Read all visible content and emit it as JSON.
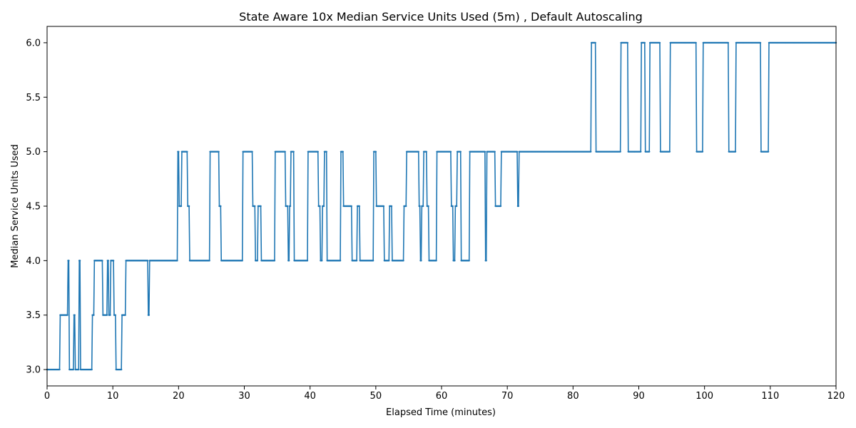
{
  "chart_data": {
    "type": "line",
    "title": "State Aware 10x Median Service Units Used (5m) , Default Autoscaling",
    "xlabel": "Elapsed Time (minutes)",
    "ylabel": "Median Service Units Used",
    "xlim": [
      0,
      120
    ],
    "ylim": [
      2.85,
      6.15
    ],
    "xticks": [
      0,
      10,
      20,
      30,
      40,
      50,
      60,
      70,
      80,
      90,
      100,
      110,
      120
    ],
    "yticks": [
      "3.0",
      "3.5",
      "4.0",
      "4.5",
      "5.0",
      "5.5",
      "6.0"
    ],
    "grid": false,
    "legend": "none",
    "line_color": "#1f77b4",
    "marker": "small dot",
    "series": [
      {
        "step_start": 0,
        "step_minutes": 0.1,
        "levels": [
          [
            0,
            3.0
          ],
          [
            2.0,
            3.5
          ],
          [
            3.2,
            4.0
          ],
          [
            3.4,
            3.0
          ],
          [
            4.1,
            3.5
          ],
          [
            4.3,
            3.0
          ],
          [
            4.9,
            4.0
          ],
          [
            5.1,
            3.0
          ],
          [
            6.9,
            3.5
          ],
          [
            7.2,
            4.0
          ],
          [
            8.5,
            3.5
          ],
          [
            9.2,
            4.0
          ],
          [
            9.4,
            3.5
          ],
          [
            9.7,
            4.0
          ],
          [
            10.2,
            3.5
          ],
          [
            10.5,
            3.0
          ],
          [
            11.4,
            3.5
          ],
          [
            12.0,
            4.0
          ],
          [
            15.4,
            3.5
          ],
          [
            15.6,
            4.0
          ],
          [
            19.9,
            5.0
          ],
          [
            20.1,
            4.5
          ],
          [
            20.5,
            5.0
          ],
          [
            21.4,
            4.5
          ],
          [
            21.7,
            4.0
          ],
          [
            24.8,
            5.0
          ],
          [
            26.2,
            4.5
          ],
          [
            26.5,
            4.0
          ],
          [
            29.8,
            5.0
          ],
          [
            31.3,
            4.5
          ],
          [
            31.7,
            4.0
          ],
          [
            32.1,
            4.5
          ],
          [
            32.6,
            4.0
          ],
          [
            34.7,
            5.0
          ],
          [
            36.3,
            4.5
          ],
          [
            36.7,
            4.0
          ],
          [
            36.9,
            4.5
          ],
          [
            37.1,
            5.0
          ],
          [
            37.6,
            4.0
          ],
          [
            39.7,
            5.0
          ],
          [
            41.3,
            4.5
          ],
          [
            41.6,
            4.0
          ],
          [
            41.9,
            4.5
          ],
          [
            42.2,
            5.0
          ],
          [
            42.6,
            4.0
          ],
          [
            44.7,
            5.0
          ],
          [
            45.1,
            4.5
          ],
          [
            46.4,
            4.0
          ],
          [
            47.2,
            4.5
          ],
          [
            47.6,
            4.0
          ],
          [
            49.7,
            5.0
          ],
          [
            50.1,
            4.5
          ],
          [
            51.3,
            4.0
          ],
          [
            52.1,
            4.5
          ],
          [
            52.5,
            4.0
          ],
          [
            54.3,
            4.5
          ],
          [
            54.7,
            5.0
          ],
          [
            56.6,
            4.5
          ],
          [
            56.8,
            4.0
          ],
          [
            57.0,
            4.5
          ],
          [
            57.3,
            5.0
          ],
          [
            57.8,
            4.5
          ],
          [
            58.1,
            4.0
          ],
          [
            59.3,
            5.0
          ],
          [
            61.5,
            4.5
          ],
          [
            61.8,
            4.0
          ],
          [
            62.1,
            4.5
          ],
          [
            62.4,
            5.0
          ],
          [
            63.0,
            4.0
          ],
          [
            64.3,
            5.0
          ],
          [
            66.7,
            4.0
          ],
          [
            66.9,
            5.0
          ],
          [
            68.2,
            4.5
          ],
          [
            69.1,
            5.0
          ],
          [
            71.6,
            4.5
          ],
          [
            71.8,
            5.0
          ],
          [
            82.8,
            6.0
          ],
          [
            83.5,
            5.0
          ],
          [
            87.3,
            6.0
          ],
          [
            88.4,
            5.0
          ],
          [
            90.4,
            6.0
          ],
          [
            91.0,
            5.0
          ],
          [
            91.7,
            6.0
          ],
          [
            93.3,
            5.0
          ],
          [
            94.8,
            6.0
          ],
          [
            98.8,
            5.0
          ],
          [
            99.8,
            6.0
          ],
          [
            103.7,
            5.0
          ],
          [
            104.8,
            6.0
          ],
          [
            108.6,
            5.0
          ],
          [
            109.8,
            6.0
          ]
        ]
      }
    ]
  }
}
